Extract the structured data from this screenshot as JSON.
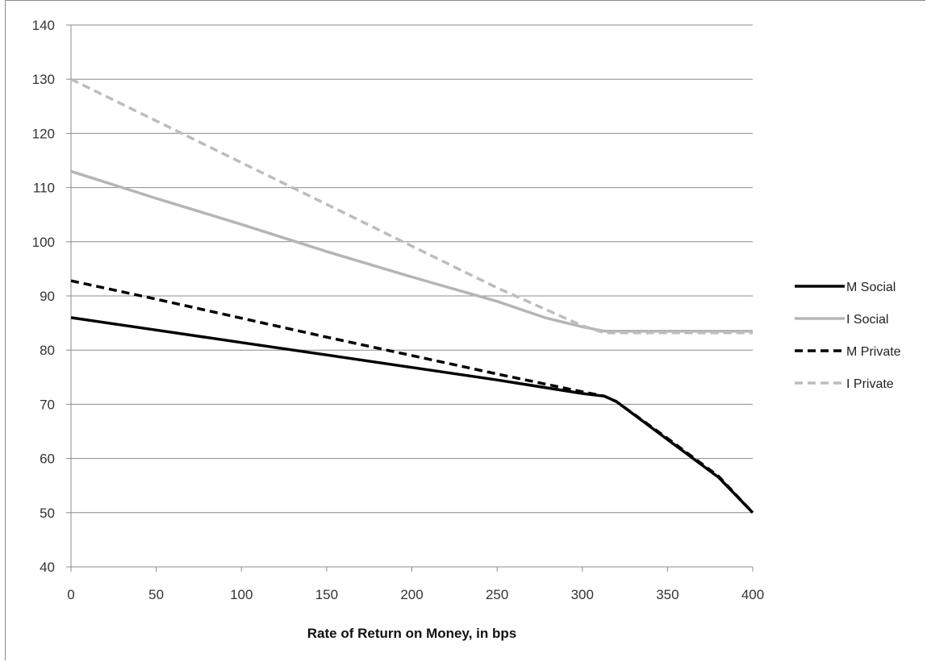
{
  "chart_data": {
    "type": "line",
    "title": "",
    "xlabel": "Rate of Return on Money, in bps",
    "ylabel": "",
    "xlim": [
      0,
      400
    ],
    "ylim": [
      40,
      140
    ],
    "xticks": [
      0,
      50,
      100,
      150,
      200,
      250,
      300,
      350,
      400
    ],
    "yticks": [
      40,
      50,
      60,
      70,
      80,
      90,
      100,
      110,
      120,
      130,
      140
    ],
    "grid": "horizontal",
    "legend_position": "right",
    "series": [
      {
        "name": "M Social",
        "color": "#000000",
        "dash": "solid",
        "points": [
          [
            0,
            86.0
          ],
          [
            50,
            83.7
          ],
          [
            100,
            81.4
          ],
          [
            150,
            79.1
          ],
          [
            200,
            76.8
          ],
          [
            250,
            74.5
          ],
          [
            300,
            72.0
          ],
          [
            313,
            71.5
          ],
          [
            320,
            70.5
          ],
          [
            350,
            63.5
          ],
          [
            380,
            56.5
          ],
          [
            400,
            50.0
          ]
        ]
      },
      {
        "name": "I Social",
        "color": "#b5b5b5",
        "dash": "solid",
        "points": [
          [
            0,
            113.0
          ],
          [
            50,
            108.0
          ],
          [
            100,
            103.2
          ],
          [
            150,
            98.2
          ],
          [
            200,
            93.5
          ],
          [
            250,
            89.0
          ],
          [
            278,
            86.0
          ],
          [
            300,
            84.3
          ],
          [
            313,
            83.5
          ],
          [
            400,
            83.5
          ]
        ]
      },
      {
        "name": "M Private",
        "color": "#000000",
        "dash": "dashed",
        "points": [
          [
            0,
            92.8
          ],
          [
            50,
            89.4
          ],
          [
            100,
            85.9
          ],
          [
            150,
            82.4
          ],
          [
            200,
            79.0
          ],
          [
            250,
            75.6
          ],
          [
            300,
            72.3
          ],
          [
            313,
            71.5
          ],
          [
            320,
            70.5
          ],
          [
            350,
            63.7
          ],
          [
            380,
            56.7
          ],
          [
            400,
            50.0
          ]
        ]
      },
      {
        "name": "I Private",
        "color": "#bdbdbd",
        "dash": "dashed",
        "points": [
          [
            0,
            130.0
          ],
          [
            50,
            122.3
          ],
          [
            100,
            114.6
          ],
          [
            150,
            106.9
          ],
          [
            200,
            99.2
          ],
          [
            250,
            91.5
          ],
          [
            300,
            84.5
          ],
          [
            313,
            83.2
          ],
          [
            400,
            83.2
          ]
        ]
      }
    ]
  }
}
